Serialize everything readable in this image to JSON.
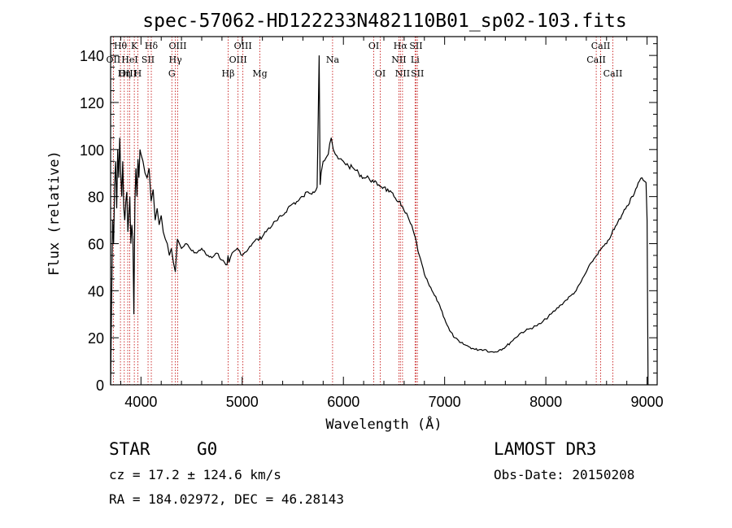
{
  "chart_data": {
    "type": "line",
    "title": "spec-57062-HD122233N482110B01_sp02-103.fits",
    "xlabel": "Wavelength (Å)",
    "ylabel": "Flux (relative)",
    "xlim": [
      3700,
      9100
    ],
    "ylim": [
      0,
      148
    ],
    "x_ticks": [
      {
        "value": 4000,
        "label": "4000"
      },
      {
        "value": 5000,
        "label": "5000"
      },
      {
        "value": 6000,
        "label": "6000"
      },
      {
        "value": 7000,
        "label": "7000"
      },
      {
        "value": 8000,
        "label": "8000"
      },
      {
        "value": 9000,
        "label": "9000"
      }
    ],
    "y_ticks": [
      {
        "value": 0,
        "label": "0"
      },
      {
        "value": 20,
        "label": "20"
      },
      {
        "value": 40,
        "label": "40"
      },
      {
        "value": 60,
        "label": "60"
      },
      {
        "value": 80,
        "label": "80"
      },
      {
        "value": 100,
        "label": "100"
      },
      {
        "value": 120,
        "label": "120"
      },
      {
        "value": 140,
        "label": "140"
      }
    ],
    "series": [
      {
        "name": "flux",
        "x": [
          3700,
          3710,
          3720,
          3730,
          3740,
          3750,
          3760,
          3770,
          3780,
          3790,
          3800,
          3810,
          3820,
          3830,
          3840,
          3850,
          3860,
          3870,
          3880,
          3890,
          3900,
          3910,
          3920,
          3930,
          3940,
          3950,
          3960,
          3970,
          3980,
          3990,
          4000,
          4020,
          4040,
          4060,
          4080,
          4100,
          4120,
          4140,
          4160,
          4180,
          4200,
          4220,
          4240,
          4260,
          4280,
          4300,
          4320,
          4340,
          4360,
          4380,
          4400,
          4450,
          4500,
          4550,
          4600,
          4650,
          4700,
          4750,
          4800,
          4850,
          4860,
          4870,
          4900,
          4950,
          5000,
          5050,
          5100,
          5150,
          5200,
          5250,
          5300,
          5350,
          5400,
          5450,
          5500,
          5550,
          5600,
          5650,
          5700,
          5740,
          5760,
          5770,
          5780,
          5800,
          5850,
          5880,
          5900,
          5920,
          5950,
          6000,
          6050,
          6100,
          6150,
          6200,
          6250,
          6300,
          6350,
          6400,
          6450,
          6500,
          6550,
          6560,
          6570,
          6600,
          6650,
          6700,
          6750,
          6800,
          6850,
          6900,
          6950,
          7000,
          7050,
          7100,
          7150,
          7200,
          7250,
          7300,
          7350,
          7400,
          7450,
          7500,
          7550,
          7600,
          7650,
          7700,
          7750,
          7800,
          7850,
          7900,
          7950,
          8000,
          8050,
          8100,
          8150,
          8200,
          8250,
          8300,
          8350,
          8400,
          8450,
          8500,
          8550,
          8600,
          8650,
          8700,
          8750,
          8800,
          8850,
          8900,
          8950,
          8990,
          9000,
          9010
        ],
        "y": [
          0,
          35,
          70,
          60,
          85,
          95,
          75,
          100,
          88,
          105,
          90,
          80,
          95,
          75,
          70,
          78,
          82,
          65,
          72,
          80,
          60,
          68,
          62,
          30,
          78,
          92,
          80,
          96,
          88,
          100,
          98,
          95,
          90,
          88,
          92,
          78,
          83,
          70,
          75,
          68,
          72,
          65,
          62,
          60,
          55,
          58,
          52,
          48,
          62,
          60,
          58,
          60,
          57,
          56,
          58,
          55,
          54,
          56,
          53,
          51,
          55,
          52,
          56,
          58,
          55,
          57,
          60,
          62,
          63,
          66,
          68,
          70,
          72,
          75,
          77,
          78,
          80,
          82,
          82,
          84,
          140,
          85,
          90,
          95,
          98,
          105,
          100,
          98,
          96,
          95,
          93,
          92,
          90,
          88,
          88,
          86,
          85,
          84,
          82,
          80,
          78,
          78,
          76,
          74,
          70,
          64,
          55,
          47,
          42,
          38,
          34,
          28,
          23,
          20,
          18,
          17,
          16,
          15,
          15,
          15,
          14,
          14,
          15,
          16,
          18,
          20,
          22,
          23,
          24,
          25,
          26,
          28,
          30,
          32,
          34,
          36,
          38,
          40,
          44,
          48,
          52,
          55,
          58,
          60,
          64,
          68,
          72,
          76,
          80,
          84,
          88,
          86,
          70,
          0
        ]
      }
    ],
    "line_markers": [
      {
        "label": "Hθ",
        "wavelength": 3797
      },
      {
        "label": "OII",
        "wavelength": 3727
      },
      {
        "label": "OIII",
        "wavelength": 3869
      },
      {
        "label": "HeI",
        "wavelength": 3889
      },
      {
        "label": "K",
        "wavelength": 3934
      },
      {
        "label": "Hη",
        "wavelength": 3835
      },
      {
        "label": "H",
        "wavelength": 3969
      },
      {
        "label": "SII",
        "wavelength": 4070
      },
      {
        "label": "Hδ",
        "wavelength": 4102
      },
      {
        "label": "OIII",
        "wavelength": 4363
      },
      {
        "label": "Hγ",
        "wavelength": 4340
      },
      {
        "label": "G",
        "wavelength": 4305
      },
      {
        "label": "OIII",
        "wavelength": 5007
      },
      {
        "label": "OIII",
        "wavelength": 4959
      },
      {
        "label": "Hβ",
        "wavelength": 4861
      },
      {
        "label": "Mg",
        "wavelength": 5175
      },
      {
        "label": "Na",
        "wavelength": 5893
      },
      {
        "label": "OI",
        "wavelength": 6300
      },
      {
        "label": "OI",
        "wavelength": 6364
      },
      {
        "label": "Hα",
        "wavelength": 6563
      },
      {
        "label": "NII",
        "wavelength": 6548
      },
      {
        "label": "NII",
        "wavelength": 6584
      },
      {
        "label": "SII",
        "wavelength": 6717
      },
      {
        "label": "Li",
        "wavelength": 6708
      },
      {
        "label": "SII",
        "wavelength": 6731
      },
      {
        "label": "CaII",
        "wavelength": 8542
      },
      {
        "label": "CaII",
        "wavelength": 8498
      },
      {
        "label": "CaII",
        "wavelength": 8662
      }
    ]
  },
  "info": {
    "object_class": "STAR",
    "subclass": "G0",
    "survey": "LAMOST DR3",
    "redshift_text": "cz = 17.2 ± 124.6 km/s",
    "obs_date_text": "Obs-Date: 20150208",
    "coords_text": "RA = 184.02972, DEC =  46.28143"
  },
  "colors": {
    "spectrum": "#000000",
    "marker": "#c00000",
    "axes": "#000000"
  }
}
